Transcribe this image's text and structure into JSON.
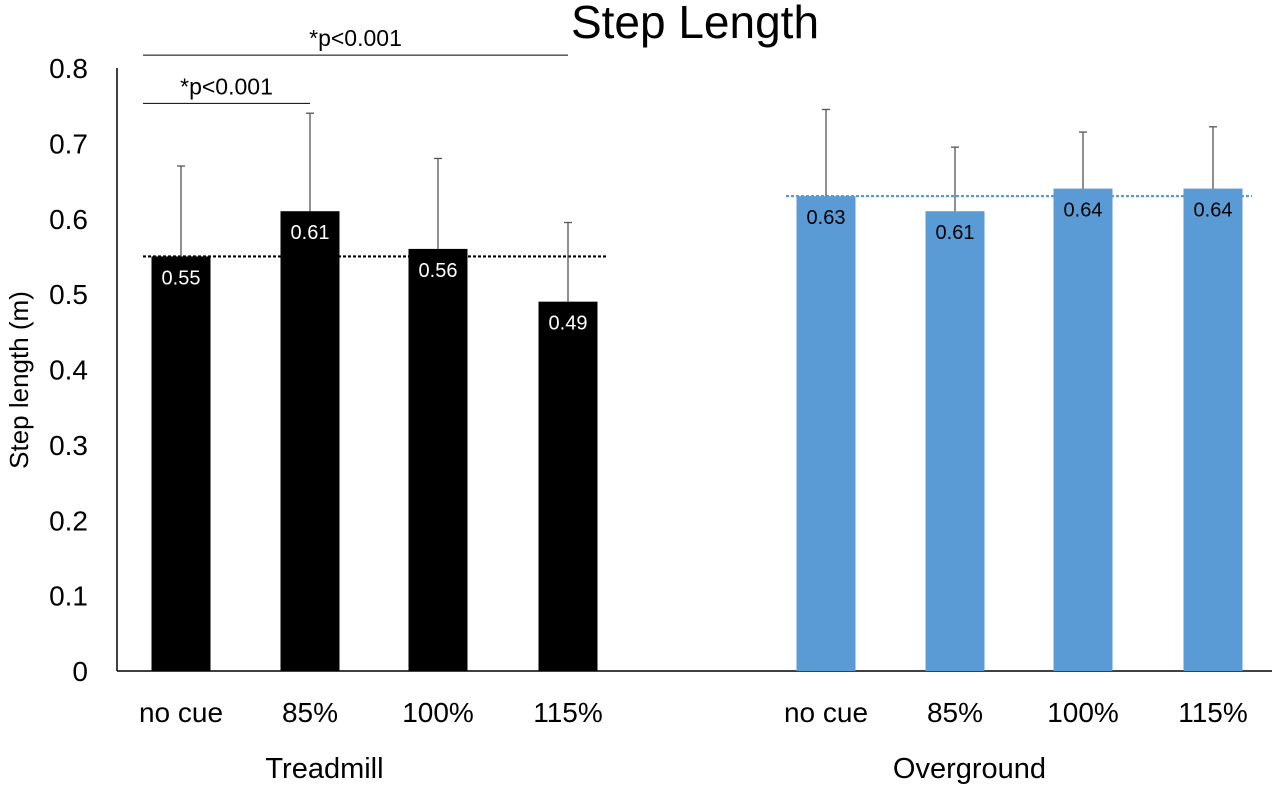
{
  "chart_data": {
    "type": "bar",
    "title": "Step Length",
    "ylabel": "Step length (m)",
    "ylim": [
      0,
      0.8
    ],
    "yticks": [
      "0",
      "0.1",
      "0.2",
      "0.3",
      "0.4",
      "0.5",
      "0.6",
      "0.7",
      "0.8"
    ],
    "grid": false,
    "groups": [
      {
        "name": "Treadmill",
        "color": "#000000",
        "label_color": "#ffffff",
        "mean_line": 0.55,
        "mean_line_color": "#000000",
        "categories": [
          "no cue",
          "85%",
          "100%",
          "115%"
        ],
        "values": [
          0.55,
          0.61,
          0.56,
          0.49
        ],
        "value_labels": [
          "0.55",
          "0.61",
          "0.56",
          "0.49"
        ],
        "error_upper": [
          0.67,
          0.74,
          0.68,
          0.595
        ]
      },
      {
        "name": "Overground",
        "color": "#5b9bd5",
        "label_color": "#000000",
        "mean_line": 0.63,
        "mean_line_color": "#5b9bd5",
        "categories": [
          "no cue",
          "85%",
          "100%",
          "115%"
        ],
        "values": [
          0.63,
          0.61,
          0.64,
          0.64
        ],
        "value_labels": [
          "0.63",
          "0.61",
          "0.64",
          "0.64"
        ],
        "error_upper": [
          0.745,
          0.695,
          0.715,
          0.722
        ]
      }
    ],
    "annotations": [
      {
        "text": "*p<0.001",
        "from_bar": 0,
        "to_bar": 1,
        "level": 0.753
      },
      {
        "text": "*p<0.001",
        "from_bar": 0,
        "to_bar": 3,
        "level": 0.817
      }
    ]
  }
}
